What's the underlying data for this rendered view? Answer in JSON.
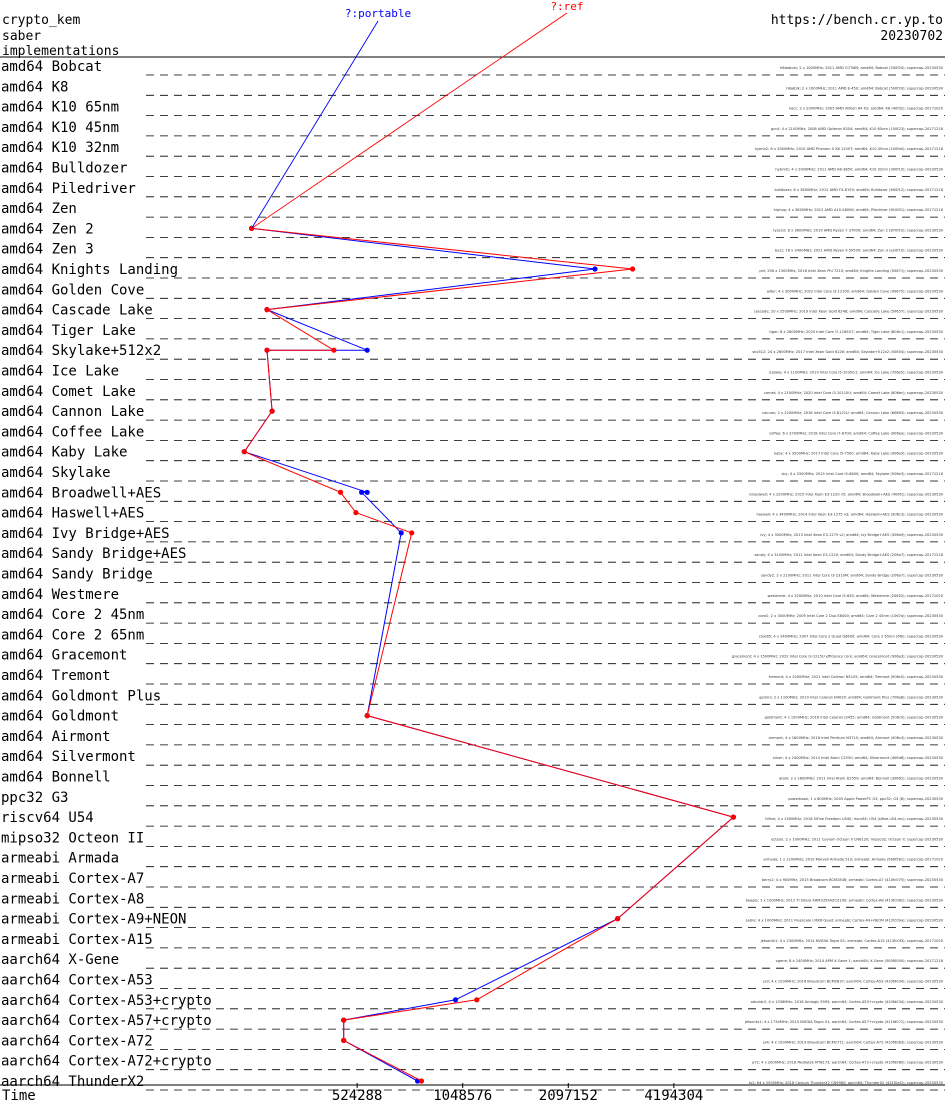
{
  "header": {
    "line1": "crypto_kem",
    "line2": "saber",
    "line3": "implementations",
    "url": "https://bench.cr.yp.to",
    "date": "20230702"
  },
  "chart_data": {
    "type": "line",
    "xscale": "log2",
    "xlabel": "Time",
    "xlim": [
      131072,
      16777216
    ],
    "xticks": [
      524288,
      1048576,
      2097152,
      4194304
    ],
    "xtick_labels": [
      "524288",
      "1048576",
      "2097152",
      "4194304"
    ],
    "colors": {
      "portable": "#0000ff",
      "ref": "#ff0000",
      "both": "#800080",
      "date_label": "#ff0000"
    },
    "legend": [
      {
        "name": "?:portable",
        "color": "#0000ff"
      },
      {
        "name": "?:ref",
        "color": "#ff0000"
      }
    ],
    "microarchitectures": [
      "amd64 Bobcat",
      "amd64 K8",
      "amd64 K10 65nm",
      "amd64 K10 45nm",
      "amd64 K10 32nm",
      "amd64 Bulldozer",
      "amd64 Piledriver",
      "amd64 Zen",
      "amd64 Zen 2",
      "amd64 Zen 3",
      "amd64 Knights Landing",
      "amd64 Golden Cove",
      "amd64 Cascade Lake",
      "amd64 Tiger Lake",
      "amd64 Skylake+512x2",
      "amd64 Ice Lake",
      "amd64 Comet Lake",
      "amd64 Cannon Lake",
      "amd64 Coffee Lake",
      "amd64 Kaby Lake",
      "amd64 Skylake",
      "amd64 Broadwell+AES",
      "amd64 Haswell+AES",
      "amd64 Ivy Bridge+AES",
      "amd64 Sandy Bridge+AES",
      "amd64 Sandy Bridge",
      "amd64 Westmere",
      "amd64 Core 2 45nm",
      "amd64 Core 2 65nm",
      "amd64 Gracemont",
      "amd64 Tremont",
      "amd64 Goldmont Plus",
      "amd64 Goldmont",
      "amd64 Airmont",
      "amd64 Silvermont",
      "amd64 Bonnell",
      "ppc32 G3",
      "riscv64 U54",
      "mipso32 Octeon II",
      "armeabi Armada",
      "armeabi Cortex-A7",
      "armeabi Cortex-A8",
      "armeabi Cortex-A9+NEON",
      "armeabi Cortex-A15",
      "aarch64 X-Gene",
      "aarch64 Cortex-A53",
      "aarch64 Cortex-A53+crypto",
      "aarch64 Cortex-A57+crypto",
      "aarch64 Cortex-A72",
      "aarch64 Cortex-A72+crypto",
      "aarch64 ThunderX2"
    ],
    "series": [
      {
        "name": "?:portable",
        "points": [
          {
            "row": "amd64 Zen 2",
            "time": 262144
          },
          {
            "row": "amd64 Knights Landing",
            "time": 2500000
          },
          {
            "row": "amd64 Cascade Lake",
            "time": 290000
          },
          {
            "row": "amd64 Skylake+512x2",
            "time": 560000
          },
          {
            "row": "amd64 Skylake+512x2",
            "time": 290000
          },
          {
            "row": "amd64 Cannon Lake",
            "time": 300000
          },
          {
            "row": "amd64 Kaby Lake",
            "time": 250000
          },
          {
            "row": "amd64 Broadwell+AES",
            "time": 560000
          },
          {
            "row": "amd64 Broadwell+AES",
            "time": 540000
          },
          {
            "row": "amd64 Ivy Bridge+AES",
            "time": 700000
          },
          {
            "row": "amd64 Goldmont",
            "time": 560000
          },
          {
            "row": "riscv64 U54",
            "time": 6200000
          },
          {
            "row": "armeabi Cortex-A9+NEON",
            "time": 2900000
          },
          {
            "row": "aarch64 Cortex-A53+crypto",
            "time": 1000000
          },
          {
            "row": "aarch64 Cortex-A57+crypto",
            "time": 480000
          },
          {
            "row": "aarch64 Cortex-A72",
            "time": 480000
          },
          {
            "row": "aarch64 ThunderX2",
            "time": 780000
          }
        ]
      },
      {
        "name": "?:ref",
        "points": [
          {
            "row": "amd64 Zen 2",
            "time": 262144
          },
          {
            "row": "amd64 Knights Landing",
            "time": 3200000
          },
          {
            "row": "amd64 Cascade Lake",
            "time": 290000
          },
          {
            "row": "amd64 Skylake+512x2",
            "time": 450000
          },
          {
            "row": "amd64 Skylake+512x2",
            "time": 290000
          },
          {
            "row": "amd64 Cannon Lake",
            "time": 300000
          },
          {
            "row": "amd64 Kaby Lake",
            "time": 250000
          },
          {
            "row": "amd64 Broadwell+AES",
            "time": 470000
          },
          {
            "row": "amd64 Haswell+AES",
            "time": 520000
          },
          {
            "row": "amd64 Ivy Bridge+AES",
            "time": 750000
          },
          {
            "row": "amd64 Goldmont",
            "time": 560000
          },
          {
            "row": "riscv64 U54",
            "time": 6200000
          },
          {
            "row": "armeabi Cortex-A9+NEON",
            "time": 2900000
          },
          {
            "row": "aarch64 Cortex-A53+crypto",
            "time": 1150000
          },
          {
            "row": "aarch64 Cortex-A57+crypto",
            "time": 480000
          },
          {
            "row": "aarch64 Cortex-A72",
            "time": 480000
          },
          {
            "row": "aarch64 ThunderX2",
            "time": 800000
          }
        ]
      }
    ],
    "annotations": [
      {
        "row": "amd64 Bobcat",
        "text": "h8bobcat; 2 x 1000MHz; 2011 AMD G-T56N; amd64; Bobcat (500f20); supercop-20230530"
      },
      {
        "row": "amd64 K8",
        "text": "h8a83k; 2 x 1000MHz; 2011 AMD E-450; amd64; Bobcat (500f20); supercop-20230530"
      },
      {
        "row": "amd64 K10 65nm",
        "text": "hacc; 2 x 2000MHz; 2005 AMD Athlon 64 X2; amd64; K8 (40f32); supercop-20171020"
      },
      {
        "row": "amd64 K10 45nm",
        "text": "gcc4; 4 x 2100MHz; 2008 AMD Opteron 8354; amd64; K10 65nm (100f23); supercop-20171218"
      },
      {
        "row": "amd64 K10 32nm",
        "text": "hyena2; 6 x 3300MHz; 2010 AMD Phenom II X6 1100T; amd64; K10 45nm (100fa0); supercop-20171218"
      },
      {
        "row": "amd64 Bulldozer",
        "text": "hybrid1; 4 x 2900MHz; 2011 AMD A8-3850; amd64; K10 32nm (300f10); supercop-20230530"
      },
      {
        "row": "amd64 Piledriver",
        "text": "bulldozer; 8 x 3600MHz; 2012 AMD FX-8150; amd64; Bulldozer (600f12); supercop-20171218"
      },
      {
        "row": "amd64 Zen",
        "text": "hiphop; 4 x 3800MHz; 2012 AMD A10-5800K; amd64; Piledriver (610f01); supercop-20171218"
      },
      {
        "row": "amd64 Zen 2",
        "text": "ryzen2; 8 x 3600MHz; 2019 AMD Ryzen 7 3700X; amd64; Zen 2 (870f10); supercop-20230530"
      },
      {
        "row": "amd64 Zen 3",
        "text": "buzz; 16 x 3400MHz; 2021 AMD Ryzen 9 5950X; amd64; Zen 3 (a20f10); supercop-20230530"
      },
      {
        "row": "amd64 Knights Landing",
        "text": "phi; 256 x 1300MHz; 2016 Intel Xeon Phi 7210; amd64; Knights Landing (50671); supercop-20230530"
      },
      {
        "row": "amd64 Golden Cove",
        "text": "alder; 4 x 3000MHz; 2022 Intel Core i3-12100; amd64; Golden Cove (90675); supercop-20230530"
      },
      {
        "row": "amd64 Cascade Lake",
        "text": "cascade; 20 x 2500MHz; 2019 Intel Xeon Gold 6248; amd64; Cascade Lake (50657); supercop-20230530"
      },
      {
        "row": "amd64 Tiger Lake",
        "text": "tiger; 8 x 2800MHz; 2020 Intel Core i7-1165G7; amd64; Tiger Lake (806c1); supercop-20230530"
      },
      {
        "row": "amd64 Skylake+512x2",
        "text": "skx512; 24 x 2600MHz; 2017 Intel Xeon Gold 6126; amd64; Skylake+512x2 (50654); supercop-20230530"
      },
      {
        "row": "amd64 Ice Lake",
        "text": "icelake; 4 x 1100MHz; 2019 Intel Core i5-1035G1; amd64; Ice Lake (706e5); supercop-20230530"
      },
      {
        "row": "amd64 Comet Lake",
        "text": "comet; 4 x 2100MHz; 2020 Intel Core i3-10110U; amd64; Comet Lake (806ec); supercop-20230530"
      },
      {
        "row": "amd64 Cannon Lake",
        "text": "cannon; 2 x 2200MHz; 2018 Intel Core i3-8121U; amd64; Cannon Lake (60663); supercop-20230530"
      },
      {
        "row": "amd64 Coffee Lake",
        "text": "coffee; 6 x 3700MHz; 2018 Intel Core i7-8700; amd64; Coffee Lake (906ea); supercop-20230530"
      },
      {
        "row": "amd64 Kaby Lake",
        "text": "kaby; 4 x 3500MHz; 2017 Intel Core i5-7500; amd64; Kaby Lake (906e9); supercop-20230530"
      },
      {
        "row": "amd64 Skylake",
        "text": "sky; 4 x 3300MHz; 2015 Intel Core i5-6600; amd64; Skylake (506e3); supercop-20171218"
      },
      {
        "row": "amd64 Broadwell+AES",
        "text": "broadwell; 4 x 2200MHz; 2015 Intel Xeon E3-1220 v5; amd64; Broadwell+AES (406f1); supercop-20230530"
      },
      {
        "row": "amd64 Haswell+AES",
        "text": "haswell; 4 x 3400MHz; 2014 Intel Xeon E3-1275 v3; amd64; Haswell+AES (306c3); supercop-20230530"
      },
      {
        "row": "amd64 Ivy Bridge+AES",
        "text": "ivy; 4 x 3500MHz; 2013 Intel Xeon E3-1275 v2; amd64; Ivy Bridge+AES (306a9); supercop-20230530"
      },
      {
        "row": "amd64 Sandy Bridge+AES",
        "text": "sandy; 4 x 3100MHz; 2011 Intel Xeon E3-1220; amd64; Sandy Bridge+AES (206a7); supercop-20171218"
      },
      {
        "row": "amd64 Sandy Bridge",
        "text": "sandy2; 2 x 2100MHz; 2011 Intel Core i3-2310M; amd64; Sandy Bridge (206a7); supercop-20230530"
      },
      {
        "row": "amd64 Westmere",
        "text": "westmere; 4 x 3200MHz; 2010 Intel Core i5-650; amd64; Westmere (20652); supercop-20171020"
      },
      {
        "row": "amd64 Core 2 45nm",
        "text": "core2; 2 x 3000MHz; 2009 Intel Core 2 Duo E8400; amd64; Core 2 45nm (1067a); supercop-20230530"
      },
      {
        "row": "amd64 Core 2 65nm",
        "text": "core65; 4 x 2400MHz; 2007 Intel Core 2 Quad Q6600; amd64; Core 2 65nm (6fb); supercop-20230530"
      },
      {
        "row": "amd64 Gracemont",
        "text": "gracemont; 4 x 1500MHz; 2022 Intel Core i3-1215U efficiency core; amd64; Gracemont (906a3); supercop-20230530"
      },
      {
        "row": "amd64 Tremont",
        "text": "tremont; 4 x 2000MHz; 2021 Intel Celeron N5105; amd64; Tremont (906c0); supercop-20230530"
      },
      {
        "row": "amd64 Goldmont Plus",
        "text": "gemini; 2 x 1100MHz; 2019 Intel Celeron N4020; amd64; Goldmont Plus (706a8); supercop-20230530"
      },
      {
        "row": "amd64 Goldmont",
        "text": "goldmont; 4 x 1500MHz; 2016 Intel Celeron J3455; amd64; Goldmont (506c9); supercop-20230530"
      },
      {
        "row": "amd64 Airmont",
        "text": "airmont; 4 x 1600MHz; 2016 Intel Pentium N3710; amd64; Airmont (406c4); supercop-20230530"
      },
      {
        "row": "amd64 Silvermont",
        "text": "silver; 4 x 2400MHz; 2014 Intel Atom C2550; amd64; Silvermont (406d8); supercop-20230530"
      },
      {
        "row": "amd64 Bonnell",
        "text": "atom; 2 x 1800MHz; 2011 Intel Atom D2550; amd64; Bonnell (30661); supercop-20230530"
      },
      {
        "row": "ppc32 G3",
        "text": "powerbook; 1 x 800MHz; 2003 Apple PowerPC G3; ppc32; G3 (8); supercop-20230530"
      },
      {
        "row": "riscv64 U54",
        "text": "hifive; 4 x 1500MHz; 2018 SiFive Freedom U540; riscv64; U54 (sifive,u54-mc); supercop-20230530"
      },
      {
        "row": "mipso32 Octeon II",
        "text": "octeon; 2 x 1000MHz; 2011 Cavium Octeon II CN6120; mipso32; Octeon II; supercop-20230530"
      },
      {
        "row": "armeabi Armada",
        "text": "armada; 1 x 1200MHz; 2010 Marvell Armada 510; armeabi; Armada (560f581); supercop-20171020"
      },
      {
        "row": "armeabi Cortex-A7",
        "text": "berry2; 4 x 900MHz; 2015 Broadcom BCM2836; armeabi; Cortex-A7 (410fc075); supercop-20230530"
      },
      {
        "row": "armeabi Cortex-A8",
        "text": "beagle; 1 x 1000MHz; 2012 TI Sitara XAM3359AZCZ100; armeabi; Cortex-A8 (413fc082); supercop-20230530"
      },
      {
        "row": "armeabi Cortex-A9+NEON",
        "text": "sabre; 4 x 1000MHz; 2011 Freescale i.MX6 Quad; armeabi; Cortex-A9+NEON (412fc09a); supercop-20230530"
      },
      {
        "row": "armeabi Cortex-A15",
        "text": "jetsontk1; 4 x 2300MHz; 2014 NVIDIA Tegra K1; armeabi; Cortex-A15 (413fc0f3); supercop-20171020"
      },
      {
        "row": "aarch64 X-Gene",
        "text": "xgene; 8 x 2400MHz; 2014 APM X-Gene 1; aarch64; X-Gene (500f0000); supercop-20171218"
      },
      {
        "row": "aarch64 Cortex-A53",
        "text": "pi3; 4 x 1200MHz; 2016 Broadcom BCM2837; aarch64; Cortex-A53 (410fd034); supercop-20230530"
      },
      {
        "row": "aarch64 Cortex-A53+crypto",
        "text": "odroidc2; 4 x 1536MHz; 2016 Amlogic S905; aarch64; Cortex-A53+crypto (410fd034); supercop-20230530"
      },
      {
        "row": "aarch64 Cortex-A57+crypto",
        "text": "jetsontx1; 4 x 1734MHz; 2015 NVIDIA Tegra X1; aarch64; Cortex-A57+crypto (411fd071); supercop-20230530"
      },
      {
        "row": "aarch64 Cortex-A72",
        "text": "pi4; 4 x 1500MHz; 2019 Broadcom BCM2711; aarch64; Cortex-A72 (410fd083); supercop-20230530"
      },
      {
        "row": "aarch64 Cortex-A72+crypto",
        "text": "a72; 4 x 2000MHz; 2018 Mediatek MT8173; aarch64; Cortex-A72+crypto (410fd080); supercop-20230530"
      },
      {
        "row": "aarch64 ThunderX2",
        "text": "tx2; 64 x 2500MHz; 2018 Cavium ThunderX2 CN9980; aarch64; ThunderX2 (431f0af1); supercop-20230530"
      }
    ]
  }
}
